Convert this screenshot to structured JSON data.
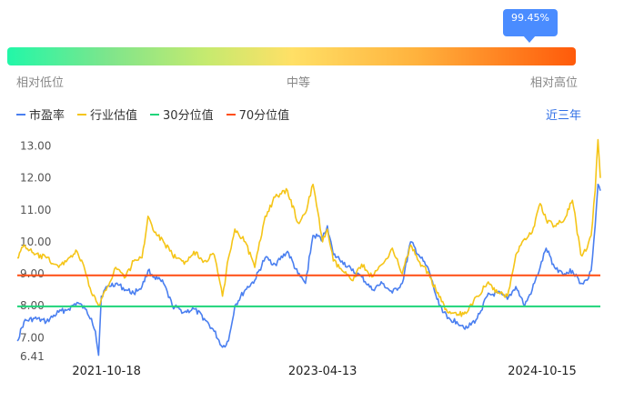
{
  "tooltip": {
    "value": "99.45%"
  },
  "scale": {
    "low": "相对低位",
    "mid": "中等",
    "high": "相对高位"
  },
  "legend": [
    {
      "label": "市盈率",
      "color": "#4a7ff0"
    },
    {
      "label": "行业估值",
      "color": "#f5c518"
    },
    {
      "label": "30分位值",
      "color": "#1fd47a"
    },
    {
      "label": "70分位值",
      "color": "#ff4d12"
    }
  ],
  "range_label": "近三年",
  "chart_data": {
    "type": "line",
    "title": "",
    "xlabel": "",
    "ylabel": "",
    "ylim": [
      6.41,
      13.3
    ],
    "y_ticks": [
      "6.41",
      "7.00",
      "8.00",
      "9.00",
      "10.00",
      "11.00",
      "12.00",
      "13.00"
    ],
    "y_tick_values": [
      6.41,
      7,
      8,
      9,
      10,
      11,
      12,
      13
    ],
    "x_ticks": [
      "2021-10-18",
      "2023-04-13",
      "2024-10-15"
    ],
    "x_tick_dates": [
      "2021-10-18",
      "2023-04-13",
      "2024-10-15"
    ],
    "x_range": [
      "2021-03-08",
      "2025-03-10"
    ],
    "reference_lines": [
      {
        "name": "30分位值",
        "value": 7.98,
        "color": "#1fd47a"
      },
      {
        "name": "70分位值",
        "value": 8.95,
        "color": "#ff4d12"
      }
    ],
    "series": [
      {
        "name": "市盈率",
        "color": "#4a7ff0",
        "points": [
          [
            "2021-03-08",
            6.9
          ],
          [
            "2021-03-25",
            7.5
          ],
          [
            "2021-04-20",
            7.6
          ],
          [
            "2021-05-20",
            7.5
          ],
          [
            "2021-06-20",
            7.8
          ],
          [
            "2021-07-15",
            7.9
          ],
          [
            "2021-08-05",
            8.1
          ],
          [
            "2021-08-25",
            7.9
          ],
          [
            "2021-09-10",
            7.6
          ],
          [
            "2021-09-20",
            7.2
          ],
          [
            "2021-09-28",
            6.45
          ],
          [
            "2021-10-05",
            8.3
          ],
          [
            "2021-10-20",
            8.6
          ],
          [
            "2021-11-10",
            8.7
          ],
          [
            "2021-12-05",
            8.5
          ],
          [
            "2021-12-25",
            8.4
          ],
          [
            "2022-01-15",
            8.6
          ],
          [
            "2022-01-30",
            9.1
          ],
          [
            "2022-02-15",
            8.9
          ],
          [
            "2022-03-10",
            8.7
          ],
          [
            "2022-04-01",
            8.0
          ],
          [
            "2022-05-01",
            7.8
          ],
          [
            "2022-05-25",
            7.9
          ],
          [
            "2022-06-20",
            7.6
          ],
          [
            "2022-07-15",
            7.2
          ],
          [
            "2022-08-05",
            6.7
          ],
          [
            "2022-08-20",
            6.9
          ],
          [
            "2022-09-05",
            8.0
          ],
          [
            "2022-10-01",
            8.5
          ],
          [
            "2022-10-25",
            8.8
          ],
          [
            "2022-11-20",
            9.5
          ],
          [
            "2022-12-15",
            9.3
          ],
          [
            "2023-01-15",
            9.7
          ],
          [
            "2023-02-10",
            9.0
          ],
          [
            "2023-03-01",
            8.7
          ],
          [
            "2023-03-20",
            10.2
          ],
          [
            "2023-04-13",
            10.1
          ],
          [
            "2023-04-25",
            10.5
          ],
          [
            "2023-05-10",
            9.6
          ],
          [
            "2023-06-01",
            9.4
          ],
          [
            "2023-06-25",
            9.1
          ],
          [
            "2023-07-20",
            8.9
          ],
          [
            "2023-08-15",
            8.5
          ],
          [
            "2023-09-10",
            8.7
          ],
          [
            "2023-10-05",
            8.4
          ],
          [
            "2023-10-30",
            8.7
          ],
          [
            "2023-11-20",
            10.0
          ],
          [
            "2023-12-10",
            9.6
          ],
          [
            "2024-01-05",
            9.1
          ],
          [
            "2024-01-25",
            8.2
          ],
          [
            "2024-02-20",
            7.6
          ],
          [
            "2024-03-15",
            7.5
          ],
          [
            "2024-04-10",
            7.3
          ],
          [
            "2024-05-05",
            7.6
          ],
          [
            "2024-05-30",
            8.3
          ],
          [
            "2024-06-25",
            8.4
          ],
          [
            "2024-07-20",
            8.2
          ],
          [
            "2024-08-10",
            8.6
          ],
          [
            "2024-09-01",
            8.0
          ],
          [
            "2024-09-20",
            8.5
          ],
          [
            "2024-10-10",
            9.2
          ],
          [
            "2024-10-25",
            9.8
          ],
          [
            "2024-11-15",
            9.2
          ],
          [
            "2024-12-10",
            9.0
          ],
          [
            "2024-12-30",
            9.1
          ],
          [
            "2025-01-20",
            8.7
          ],
          [
            "2025-02-05",
            8.8
          ],
          [
            "2025-02-15",
            9.1
          ],
          [
            "2025-02-25",
            10.5
          ],
          [
            "2025-03-04",
            11.8
          ],
          [
            "2025-03-10",
            11.6
          ]
        ]
      },
      {
        "name": "行业估值",
        "color": "#f5c518",
        "points": [
          [
            "2021-03-08",
            9.5
          ],
          [
            "2021-03-25",
            9.9
          ],
          [
            "2021-04-20",
            9.6
          ],
          [
            "2021-05-20",
            9.5
          ],
          [
            "2021-06-20",
            9.2
          ],
          [
            "2021-07-15",
            9.5
          ],
          [
            "2021-08-05",
            9.7
          ],
          [
            "2021-08-25",
            9.1
          ],
          [
            "2021-09-10",
            8.4
          ],
          [
            "2021-09-28",
            8.0
          ],
          [
            "2021-10-05",
            8.2
          ],
          [
            "2021-10-20",
            8.6
          ],
          [
            "2021-11-10",
            9.2
          ],
          [
            "2021-12-05",
            8.9
          ],
          [
            "2021-12-25",
            9.4
          ],
          [
            "2022-01-15",
            9.5
          ],
          [
            "2022-01-30",
            10.8
          ],
          [
            "2022-02-15",
            10.3
          ],
          [
            "2022-03-10",
            10.0
          ],
          [
            "2022-04-01",
            9.6
          ],
          [
            "2022-05-01",
            9.3
          ],
          [
            "2022-05-25",
            9.7
          ],
          [
            "2022-06-20",
            9.4
          ],
          [
            "2022-07-15",
            9.6
          ],
          [
            "2022-08-05",
            8.3
          ],
          [
            "2022-08-20",
            9.5
          ],
          [
            "2022-09-05",
            10.4
          ],
          [
            "2022-10-01",
            10.0
          ],
          [
            "2022-10-25",
            9.2
          ],
          [
            "2022-11-20",
            10.8
          ],
          [
            "2022-12-15",
            11.4
          ],
          [
            "2023-01-15",
            11.6
          ],
          [
            "2023-02-10",
            10.6
          ],
          [
            "2023-03-01",
            10.9
          ],
          [
            "2023-03-20",
            11.8
          ],
          [
            "2023-04-13",
            10.0
          ],
          [
            "2023-04-25",
            10.4
          ],
          [
            "2023-05-10",
            9.4
          ],
          [
            "2023-06-01",
            9.1
          ],
          [
            "2023-06-25",
            8.8
          ],
          [
            "2023-07-20",
            9.3
          ],
          [
            "2023-08-15",
            8.9
          ],
          [
            "2023-09-10",
            9.3
          ],
          [
            "2023-10-05",
            9.8
          ],
          [
            "2023-10-30",
            9.0
          ],
          [
            "2023-11-20",
            9.9
          ],
          [
            "2023-12-10",
            9.4
          ],
          [
            "2024-01-05",
            9.0
          ],
          [
            "2024-01-25",
            8.4
          ],
          [
            "2024-02-20",
            7.8
          ],
          [
            "2024-03-15",
            7.7
          ],
          [
            "2024-04-10",
            7.8
          ],
          [
            "2024-05-05",
            8.3
          ],
          [
            "2024-05-30",
            8.7
          ],
          [
            "2024-06-25",
            8.4
          ],
          [
            "2024-07-20",
            8.3
          ],
          [
            "2024-08-10",
            9.6
          ],
          [
            "2024-09-01",
            10.1
          ],
          [
            "2024-09-20",
            10.3
          ],
          [
            "2024-10-10",
            11.2
          ],
          [
            "2024-10-25",
            10.7
          ],
          [
            "2024-11-15",
            10.5
          ],
          [
            "2024-12-10",
            10.7
          ],
          [
            "2024-12-30",
            11.3
          ],
          [
            "2025-01-20",
            9.6
          ],
          [
            "2025-02-05",
            9.8
          ],
          [
            "2025-02-15",
            10.2
          ],
          [
            "2025-02-25",
            11.6
          ],
          [
            "2025-03-04",
            13.2
          ],
          [
            "2025-03-10",
            12.0
          ]
        ]
      }
    ]
  }
}
